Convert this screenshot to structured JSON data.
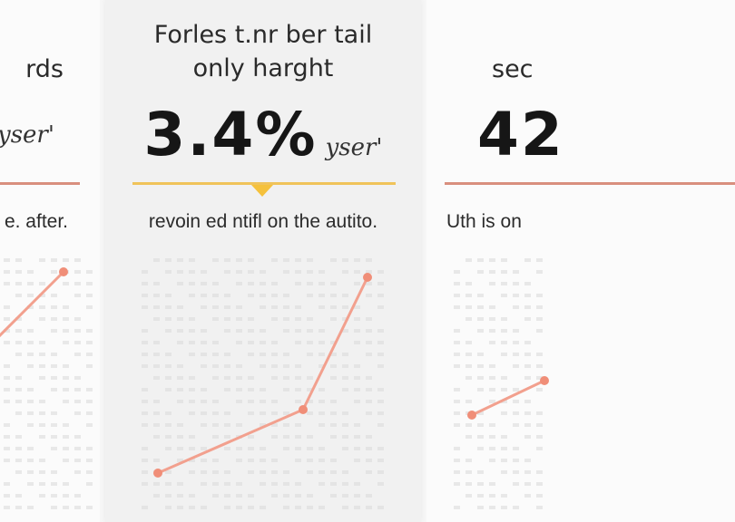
{
  "panels": {
    "left": {
      "title_line2": "rds",
      "unit": "yser'",
      "description": "e. after.",
      "accent_color": "#d98f7e"
    },
    "center": {
      "title_line1": "Forles t.nr ber tail",
      "title_line2": "only harght",
      "value": "3.4%",
      "unit": "yser'",
      "description": "revoin ed ntifl on the autito.",
      "accent_color": "#f0c35a",
      "marker_color": "#f5c13c"
    },
    "right": {
      "title_line2": "sec",
      "value": "42",
      "description": "Uth is on",
      "accent_color": "#d98f7e"
    }
  },
  "colors": {
    "line": "#f2a08e",
    "marker_dot": "#f08e78",
    "dots": "#d9d9d9"
  }
}
